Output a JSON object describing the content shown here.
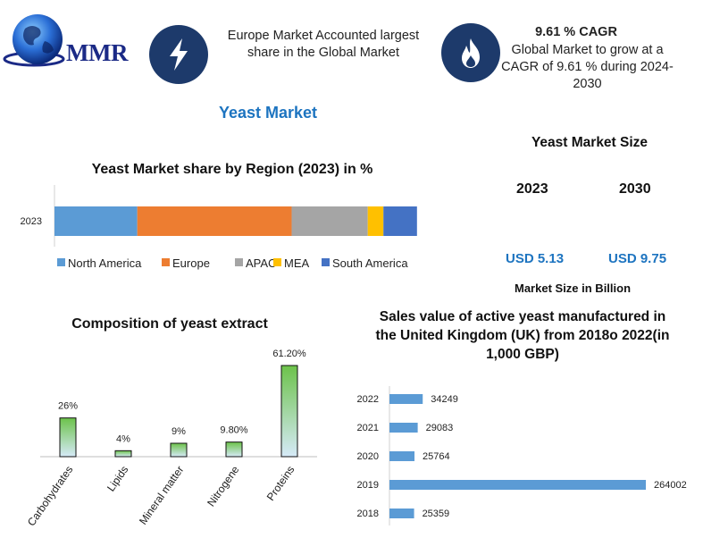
{
  "brand": {
    "logo_text": "MMR"
  },
  "highlights": {
    "europe": "Europe Market Accounted largest share in the Global Market",
    "cagr_title": "9.61 % CAGR",
    "cagr_text": "Global Market to grow at a CAGR of 9.61 % during 2024-2030"
  },
  "main_title": "Yeast Market",
  "market_size": {
    "title": "Yeast Market Size",
    "year_1": "2023",
    "year_2": "2030",
    "value_1": "USD 5.13",
    "value_2": "USD 9.75",
    "unit_label": "Market Size in Billion"
  },
  "colors": {
    "navy_icon": "#1d3a6b",
    "accent_blue": "#1d74c0",
    "green_bar": "#6cc24a"
  },
  "chart_data": [
    {
      "type": "bar",
      "orientation": "horizontal-stacked",
      "title": "Yeast Market share by Region (2023) in %",
      "categories": [
        "2023"
      ],
      "series": [
        {
          "name": "North America",
          "values": [
            18.5
          ],
          "color": "#5b9bd5"
        },
        {
          "name": "Europe",
          "values": [
            34.5
          ],
          "color": "#ed7d31"
        },
        {
          "name": "APAC",
          "values": [
            17
          ],
          "color": "#a5a5a5"
        },
        {
          "name": "MEA",
          "values": [
            3.5
          ],
          "color": "#ffc000"
        },
        {
          "name": "South America",
          "values": [
            7.5
          ],
          "color": "#4472c4"
        }
      ],
      "xlim": [
        0,
        100
      ],
      "legend": "bottom",
      "grid": false
    },
    {
      "type": "bar",
      "title": "Composition of yeast extract",
      "categories": [
        "Carbohydrates",
        "Lipids",
        "Mineral matter",
        "Nitrogene",
        "Proteins"
      ],
      "values": [
        26,
        4,
        9,
        9.8,
        61.2
      ],
      "data_labels": [
        "26%",
        "4%",
        "9%",
        "9.80%",
        "61.20%"
      ],
      "ylim": [
        0,
        65
      ],
      "grid": false
    },
    {
      "type": "bar",
      "orientation": "horizontal",
      "title": "Sales value of active yeast manufactured in the United Kingdom (UK) from 2018o 2022(in 1,000 GBP)",
      "categories": [
        "2022",
        "2021",
        "2020",
        "2019",
        "2018"
      ],
      "values": [
        34249,
        29083,
        25764,
        264002,
        25359
      ],
      "data_labels": [
        "34249",
        "29083",
        "25764",
        "264002",
        "25359"
      ],
      "xlim": [
        0,
        264002
      ],
      "grid": false
    }
  ]
}
